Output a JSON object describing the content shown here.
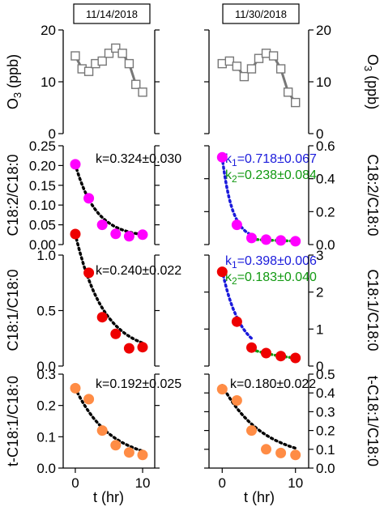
{
  "dates": [
    "11/14/2018",
    "11/30/2018"
  ],
  "x_axis": {
    "label": "t (hr)",
    "ticks": [
      0,
      10
    ],
    "range": [
      -1.8,
      11.8
    ]
  },
  "rows": [
    {
      "id": "o3",
      "ylabel": "O",
      "ylabel_sub": "3",
      "ylabel_unit": " (ppb)",
      "range": [
        0,
        20
      ],
      "ticks": [
        0,
        10,
        20
      ]
    },
    {
      "id": "c182",
      "ylabel_left": "C18:2/C18:0",
      "ylabel_right": "C18:2/C18:0",
      "range_left": [
        0,
        0.25
      ],
      "ticks_left": [
        "0.00",
        "0.05",
        "0.10",
        "0.15",
        "0.20",
        "0.25"
      ],
      "range_right": [
        0,
        0.6
      ],
      "ticks_right": [
        "0.0",
        "0.2",
        "0.4",
        "0.6"
      ],
      "marker_color": "#ff00ff"
    },
    {
      "id": "c181",
      "ylabel_left": "C18:1/C18:0",
      "ylabel_right": "C18:1/C18:0",
      "range_left": [
        0,
        1.0
      ],
      "ticks_left": [
        "0.0",
        "0.5",
        "1.0"
      ],
      "range_right": [
        0,
        3
      ],
      "ticks_right": [
        "0",
        "1",
        "2",
        "3"
      ],
      "marker_color": "#ee0000"
    },
    {
      "id": "tc181",
      "ylabel_left": "t-C18:1/C18:0",
      "ylabel_right": "t-C18:1/C18:0",
      "range_left": [
        0,
        0.3
      ],
      "ticks_left": [
        "0.0",
        "0.1",
        "0.2",
        "0.3"
      ],
      "range_right": [
        0,
        0.5
      ],
      "ticks_right": [
        "0.0",
        "0.1",
        "0.2",
        "0.3",
        "0.4",
        "0.5"
      ],
      "marker_color": "#ff8c45"
    }
  ],
  "annotations": {
    "c182_left": "k=0.324±0.030",
    "c182_right_k1_label": "k",
    "c182_right_k1_sub": "1",
    "c182_right_k1_value": "=0.718±0.067",
    "c182_right_k2_label": "k",
    "c182_right_k2_sub": "2",
    "c182_right_k2_value": "=0.238±0.084",
    "c181_left": "k=0.240±0.022",
    "c181_right_k1_label": "k",
    "c181_right_k1_sub": "1",
    "c181_right_k1_value": "=0.398±0.006",
    "c181_right_k2_label": "k",
    "c181_right_k2_sub": "2",
    "c181_right_k2_value": "=0.183±0.040",
    "tc181_left": "k=0.192±0.025",
    "tc181_right": "k=0.180±0.022"
  },
  "colors": {
    "o3_line": "#777777",
    "fit_single": "#000000",
    "fit_k1": "#1a1adb",
    "fit_k2": "#119911"
  },
  "chart_data": [
    {
      "type": "line",
      "panel": "O3 11/14/2018",
      "x_unit": "hr",
      "series": [
        {
          "x": [
            0,
            1,
            2,
            3,
            4,
            5,
            6,
            7,
            8,
            9,
            10
          ],
          "y": [
            15,
            12.5,
            12,
            13.5,
            14,
            15.5,
            16.5,
            15.5,
            13.5,
            9.5,
            8
          ]
        }
      ]
    },
    {
      "type": "line",
      "panel": "O3 11/30/2018",
      "x_unit": "hr",
      "series": [
        {
          "x": [
            0,
            1,
            2,
            3,
            4,
            5,
            6,
            7,
            8,
            9,
            10
          ],
          "y": [
            13.5,
            14,
            13,
            11,
            12.5,
            14.5,
            15.5,
            15,
            12.5,
            8,
            6
          ]
        }
      ]
    },
    {
      "type": "scatter",
      "panel": "C18:2/C18:0 11/14/2018",
      "series": [
        {
          "x": [
            0,
            2,
            4,
            6,
            8,
            10
          ],
          "y": [
            0.203,
            0.117,
            0.05,
            0.027,
            0.021,
            0.025
          ]
        }
      ],
      "fit": "k=0.324±0.030"
    },
    {
      "type": "scatter",
      "panel": "C18:2/C18:0 11/30/2018",
      "series": [
        {
          "x": [
            0,
            2,
            4,
            6,
            8,
            10
          ],
          "y": [
            0.53,
            0.12,
            0.04,
            0.03,
            0.025,
            0.02
          ]
        }
      ],
      "fits": [
        "k1=0.718±0.067",
        "k2=0.238±0.084"
      ]
    },
    {
      "type": "scatter",
      "panel": "C18:1/C18:0 11/14/2018",
      "series": [
        {
          "x": [
            0,
            2,
            4,
            6,
            8,
            10
          ],
          "y": [
            1.19,
            0.84,
            0.44,
            0.29,
            0.16,
            0.17
          ]
        }
      ],
      "fit": "k=0.240±0.022"
    },
    {
      "type": "scatter",
      "panel": "C18:1/C18:0 11/30/2018",
      "series": [
        {
          "x": [
            0,
            2,
            4,
            6,
            8,
            10
          ],
          "y": [
            2.55,
            1.2,
            0.5,
            0.35,
            0.27,
            0.22
          ]
        }
      ],
      "fits": [
        "k1=0.398±0.006",
        "k2=0.183±0.040"
      ]
    },
    {
      "type": "scatter",
      "panel": "t-C18:1/C18:0 11/14/2018",
      "series": [
        {
          "x": [
            0,
            2,
            4,
            6,
            8,
            10
          ],
          "y": [
            0.255,
            0.22,
            0.12,
            0.073,
            0.05,
            0.042
          ]
        }
      ],
      "fit": "k=0.192±0.025"
    },
    {
      "type": "scatter",
      "panel": "t-C18:1/C18:0 11/30/2018",
      "series": [
        {
          "x": [
            0,
            2,
            4,
            6,
            8,
            10
          ],
          "y": [
            0.42,
            0.36,
            0.2,
            0.1,
            0.08,
            0.07
          ]
        }
      ],
      "fit": "k=0.180±0.022"
    }
  ]
}
